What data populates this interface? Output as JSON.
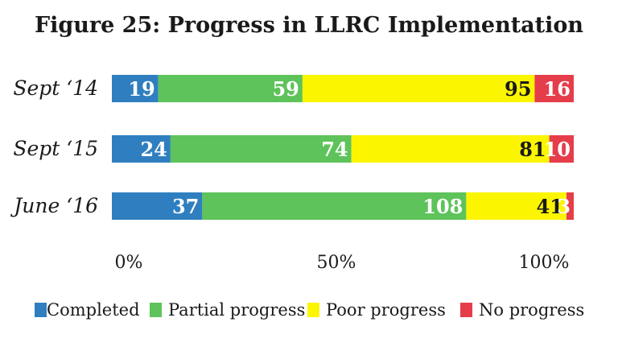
{
  "chart_data": {
    "type": "bar",
    "orientation": "horizontal",
    "stacked": true,
    "normalized": true,
    "title": "Figure 25: Progress in LLRC Implementation",
    "categories": [
      "Sept ‘14",
      "Sept ‘15",
      "June ‘16"
    ],
    "series": [
      {
        "name": "Completed",
        "values": [
          19,
          24,
          37
        ],
        "color": "#2f7fc0",
        "label_color": "#ffffff"
      },
      {
        "name": "Partial progress",
        "values": [
          59,
          74,
          108
        ],
        "color": "#5ec35a",
        "label_color": "#ffffff"
      },
      {
        "name": "Poor progress",
        "values": [
          95,
          81,
          41
        ],
        "color": "#fbf500",
        "label_color": "#1a1a1a"
      },
      {
        "name": "No progress",
        "values": [
          16,
          10,
          3
        ],
        "color": "#e63d4a",
        "label_color": "#ffffff"
      }
    ],
    "x_ticks": [
      "0%",
      "50%",
      "100%"
    ],
    "xlim": [
      0,
      100
    ],
    "grid": false,
    "legend_position": "bottom"
  }
}
